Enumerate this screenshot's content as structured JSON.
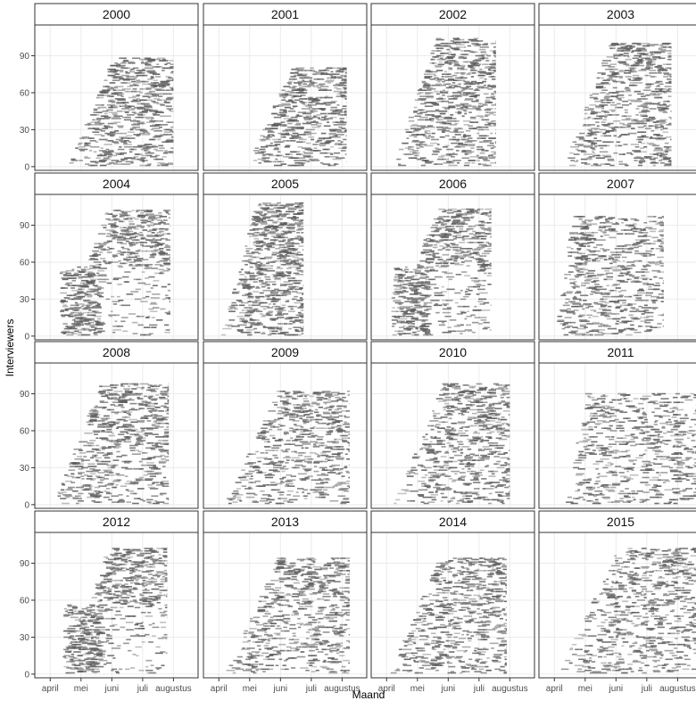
{
  "chart_data": {
    "type": "scatter",
    "description": "Small multiples (facets by year) of interviewer activity over the fieldwork months",
    "xlabel": "Maand",
    "ylabel": "Interviewers",
    "x_ticks": [
      "april",
      "mei",
      "juni",
      "juli",
      "augustus"
    ],
    "y_ticks": [
      0,
      30,
      60,
      90
    ],
    "ylim": [
      -3,
      115
    ],
    "grid": true,
    "colors": {
      "mark": "#5a5a5a",
      "strip_bg": "#ffffff",
      "grid": "#ebebeb",
      "border": "#333333"
    },
    "facets": [
      {
        "label": "2000",
        "activity": {
          "start": 0.55,
          "end": 4.0,
          "max": 88,
          "pattern": "wedge"
        }
      },
      {
        "label": "2001",
        "activity": {
          "start": 0.9,
          "end": 4.15,
          "max": 80,
          "pattern": "wedge"
        }
      },
      {
        "label": "2002",
        "activity": {
          "start": 0.15,
          "end": 3.55,
          "max": 104,
          "pattern": "wedge"
        }
      },
      {
        "label": "2003",
        "activity": {
          "start": 0.25,
          "end": 3.8,
          "max": 100,
          "pattern": "wedge"
        }
      },
      {
        "label": "2004",
        "activity": {
          "start": 0.3,
          "end": 3.9,
          "max": 102,
          "pattern": "split"
        }
      },
      {
        "label": "2005",
        "activity": {
          "start": 0.05,
          "end": 2.75,
          "max": 108,
          "pattern": "wedge"
        }
      },
      {
        "label": "2006",
        "activity": {
          "start": 0.15,
          "end": 3.4,
          "max": 103,
          "pattern": "split"
        }
      },
      {
        "label": "2007",
        "activity": {
          "start": 0.0,
          "end": 3.55,
          "max": 97,
          "pattern": "block"
        }
      },
      {
        "label": "2008",
        "activity": {
          "start": 0.0,
          "end": 3.85,
          "max": 98,
          "pattern": "wedge"
        }
      },
      {
        "label": "2009",
        "activity": {
          "start": 0.15,
          "end": 4.25,
          "max": 92,
          "pattern": "wedge"
        }
      },
      {
        "label": "2010",
        "activity": {
          "start": 0.2,
          "end": 4.0,
          "max": 98,
          "pattern": "wedge"
        }
      },
      {
        "label": "2011",
        "activity": {
          "start": 0.35,
          "end": 4.6,
          "max": 90,
          "pattern": "block"
        }
      },
      {
        "label": "2012",
        "activity": {
          "start": 0.4,
          "end": 3.8,
          "max": 102,
          "pattern": "split"
        }
      },
      {
        "label": "2013",
        "activity": {
          "start": 0.15,
          "end": 4.25,
          "max": 94,
          "pattern": "wedge"
        }
      },
      {
        "label": "2014",
        "activity": {
          "start": 0.05,
          "end": 3.9,
          "max": 94,
          "pattern": "wedge"
        }
      },
      {
        "label": "2015",
        "activity": {
          "start": 0.1,
          "end": 4.65,
          "max": 102,
          "pattern": "wedge"
        }
      }
    ]
  }
}
